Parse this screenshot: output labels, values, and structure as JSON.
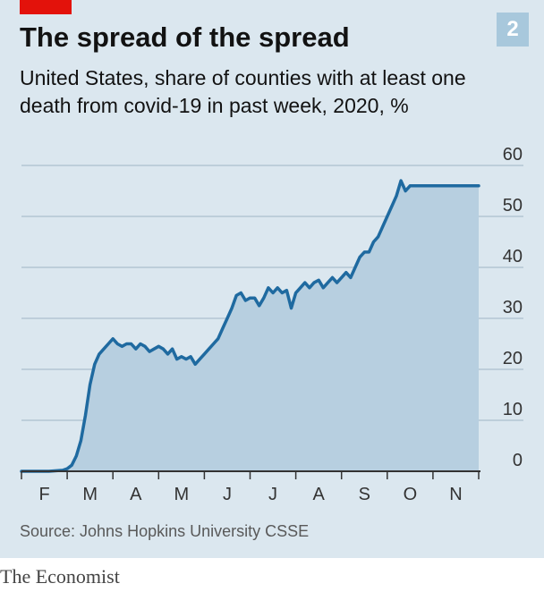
{
  "chart_number": "2",
  "source": "Source: Johns Hopkins University CSSE",
  "brand": "The Economist",
  "colors": {
    "panel": "#dbe7ef",
    "accent_red": "#e3120b",
    "line": "#1f6aa0",
    "area": "#b7cfe0",
    "grid": "#b3c6d4",
    "badge": "#a8c8dc"
  },
  "chart_data": {
    "type": "area",
    "title": "The spread of the spread",
    "subtitle": "United States, share of counties with at least one death from covid-19 in past week, 2020, %",
    "xlabel": "",
    "ylabel": "%",
    "ylim": [
      0,
      60
    ],
    "yticks": [
      "0",
      "10",
      "20",
      "30",
      "40",
      "50",
      "60"
    ],
    "ytick_values": [
      0,
      10,
      20,
      30,
      40,
      50,
      60
    ],
    "x_unit": "month (0 = Feb 1)",
    "xlim": [
      0,
      10
    ],
    "xticks": [
      "F",
      "M",
      "A",
      "M",
      "J",
      "J",
      "A",
      "S",
      "O",
      "N"
    ],
    "series": [
      {
        "name": "Share of counties with at least one death in past week",
        "x": [
          0,
          0.6,
          0.9,
          1.0,
          1.1,
          1.2,
          1.3,
          1.4,
          1.5,
          1.6,
          1.7,
          1.8,
          1.9,
          2.0,
          2.1,
          2.2,
          2.3,
          2.4,
          2.5,
          2.6,
          2.7,
          2.8,
          2.9,
          3.0,
          3.1,
          3.2,
          3.3,
          3.4,
          3.5,
          3.6,
          3.7,
          3.8,
          3.9,
          4.0,
          4.1,
          4.2,
          4.3,
          4.4,
          4.5,
          4.6,
          4.7,
          4.8,
          4.9,
          5.0,
          5.1,
          5.2,
          5.3,
          5.4,
          5.5,
          5.6,
          5.7,
          5.8,
          5.9,
          6.0,
          6.1,
          6.2,
          6.3,
          6.4,
          6.5,
          6.6,
          6.7,
          6.8,
          6.9,
          7.0,
          7.1,
          7.2,
          7.3,
          7.4,
          7.5,
          7.6,
          7.7,
          7.8,
          7.9,
          8.0,
          8.1,
          8.2,
          8.3,
          8.4,
          8.5,
          8.6,
          8.7,
          8.8,
          8.9,
          9.0,
          9.1,
          9.2,
          9.3,
          9.4,
          9.5,
          9.6,
          9.7,
          9.8,
          9.9,
          10.0
        ],
        "values": [
          0,
          0,
          0.2,
          0.5,
          1.2,
          3,
          6,
          11,
          17,
          21,
          23,
          24,
          25,
          26,
          25,
          24.5,
          25,
          25,
          24,
          25,
          24.5,
          23.5,
          24,
          24.5,
          24,
          23,
          24,
          22,
          22.5,
          22,
          22.5,
          21,
          22,
          23,
          24,
          25,
          26,
          28,
          30,
          32,
          34.5,
          35,
          33.5,
          34,
          34,
          32.5,
          34,
          36,
          35,
          36,
          35,
          35.5,
          32,
          35,
          36,
          37,
          36,
          37,
          37.5,
          36,
          37,
          38,
          37,
          38,
          39,
          38,
          40,
          42,
          43,
          43,
          45,
          46,
          48,
          50,
          52,
          54,
          57,
          55,
          56,
          56,
          56,
          56,
          56,
          56,
          56,
          56,
          56,
          56,
          56,
          56,
          56,
          56,
          56,
          56
        ]
      }
    ]
  }
}
